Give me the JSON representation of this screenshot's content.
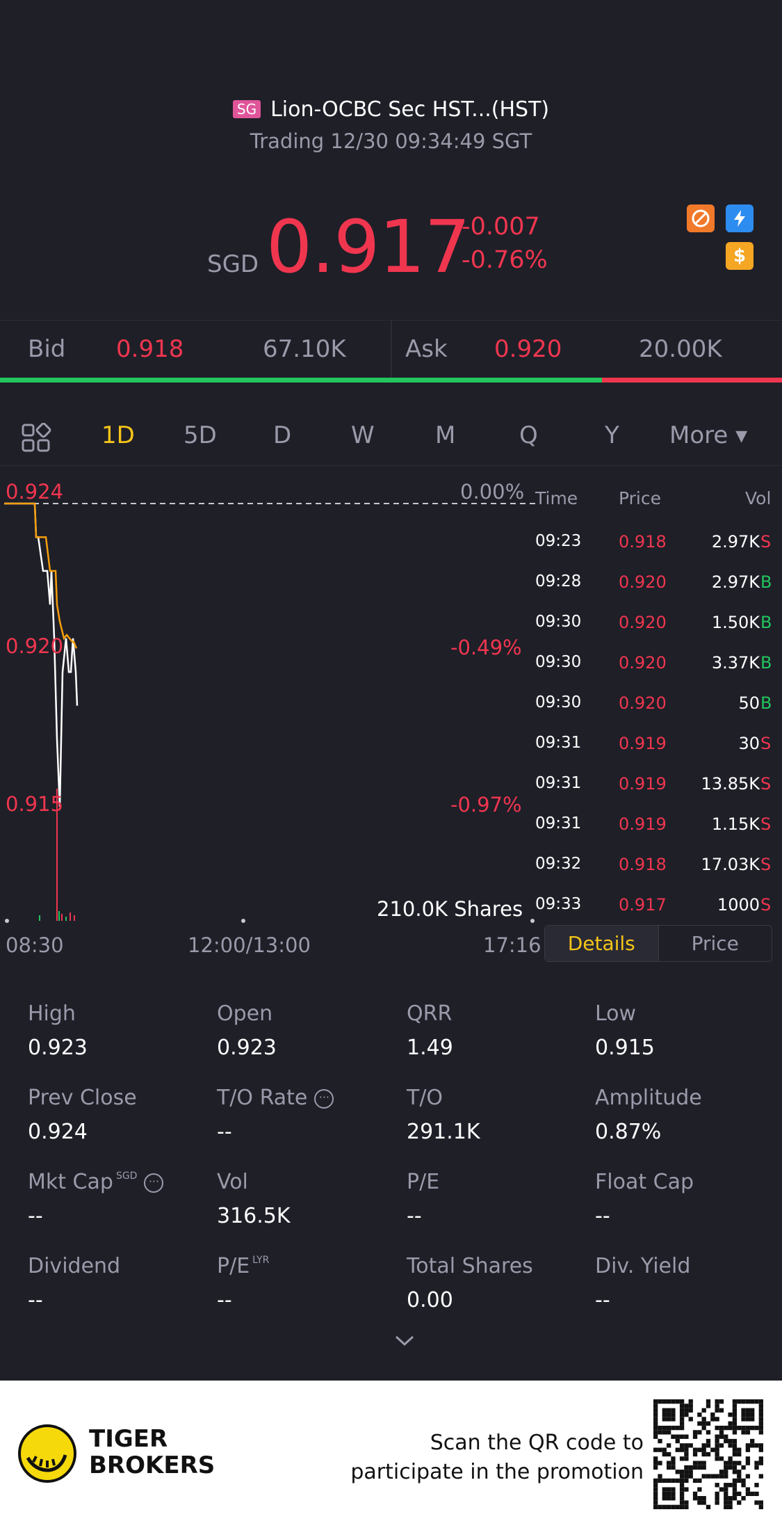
{
  "header": {
    "market_badge": "SG",
    "title": "Lion-OCBC Sec HST...(HST)",
    "subtitle": "Trading 12/30 09:34:49 SGT",
    "currency": "SGD",
    "price": "0.917",
    "change": "-0.007",
    "change_pct": "-0.76%",
    "icons": [
      "no-shorting-icon",
      "lightning-icon",
      "dollar-icon"
    ]
  },
  "quote": {
    "bid_label": "Bid",
    "bid_price": "0.918",
    "bid_vol": "67.10K",
    "ask_label": "Ask",
    "ask_price": "0.920",
    "ask_vol": "20.00K",
    "bid_ratio": 0.77
  },
  "tabs": {
    "items": [
      "1D",
      "5D",
      "D",
      "W",
      "M",
      "Q",
      "Y",
      "More ▾"
    ],
    "active": "1D"
  },
  "chart_data": {
    "type": "line",
    "y_labels": [
      "0.924",
      "0.920",
      "0.915"
    ],
    "pct_labels": [
      "0.00%",
      "-0.49%",
      "-0.97%"
    ],
    "x_labels": [
      "08:30",
      "12:00/13:00",
      "17:16"
    ],
    "volume_label": "210.0K Shares",
    "prev_close": 0.924,
    "ylim": [
      0.915,
      0.924
    ],
    "series": [
      {
        "values": [
          0.924,
          0.924,
          0.923,
          0.923,
          0.922,
          0.922,
          0.921,
          0.922,
          0.92,
          0.917,
          0.915,
          0.919,
          0.92,
          0.919,
          0.919,
          0.92,
          0.919,
          0.918
        ]
      },
      {
        "values": [
          0.924,
          0.924,
          0.923,
          0.923,
          0.923,
          0.922,
          0.922,
          0.922,
          0.921,
          0.9205,
          0.92,
          0.9201,
          0.92,
          0.9199,
          0.9199,
          0.9197
        ]
      }
    ],
    "colors": {
      "price_line": "#ffffff",
      "avg_line": "#f59e0b"
    }
  },
  "trades": {
    "headers": [
      "Time",
      "Price",
      "Vol"
    ],
    "rows": [
      {
        "time": "09:23",
        "price": "0.918",
        "vol": "2.97K",
        "side": "S"
      },
      {
        "time": "09:28",
        "price": "0.920",
        "vol": "2.97K",
        "side": "B"
      },
      {
        "time": "09:30",
        "price": "0.920",
        "vol": "1.50K",
        "side": "B"
      },
      {
        "time": "09:30",
        "price": "0.920",
        "vol": "3.37K",
        "side": "B"
      },
      {
        "time": "09:30",
        "price": "0.920",
        "vol": "50",
        "side": "B"
      },
      {
        "time": "09:31",
        "price": "0.919",
        "vol": "30",
        "side": "S"
      },
      {
        "time": "09:31",
        "price": "0.919",
        "vol": "13.85K",
        "side": "S"
      },
      {
        "time": "09:31",
        "price": "0.919",
        "vol": "1.15K",
        "side": "S"
      },
      {
        "time": "09:32",
        "price": "0.918",
        "vol": "17.03K",
        "side": "S"
      },
      {
        "time": "09:33",
        "price": "0.917",
        "vol": "1000",
        "side": "S"
      }
    ],
    "toggle_details": "Details",
    "toggle_price": "Price"
  },
  "stats": [
    {
      "label": "High",
      "value": "0.923"
    },
    {
      "label": "Open",
      "value": "0.923"
    },
    {
      "label": "QRR",
      "value": "1.49"
    },
    {
      "label": "Low",
      "value": "0.915"
    },
    {
      "label": "Prev Close",
      "value": "0.924"
    },
    {
      "label": "T/O Rate",
      "value": "--",
      "info": true
    },
    {
      "label": "T/O",
      "value": "291.1K"
    },
    {
      "label": "Amplitude",
      "value": "0.87%"
    },
    {
      "label": "Mkt Cap",
      "value": "--",
      "sup": "SGD",
      "info": true
    },
    {
      "label": "Vol",
      "value": "316.5K"
    },
    {
      "label": "P/E",
      "value": "--"
    },
    {
      "label": "Float Cap",
      "value": "--"
    },
    {
      "label": "Dividend",
      "value": "--"
    },
    {
      "label": "P/E",
      "value": "--",
      "sup": "LYR"
    },
    {
      "label": "Total Shares",
      "value": "0.00"
    },
    {
      "label": "Div. Yield",
      "value": "--"
    }
  ],
  "footer": {
    "brand_line1": "TIGER",
    "brand_line2": "BROKERS",
    "scan_line1": "Scan the QR code to",
    "scan_line2": "participate in the promotion"
  }
}
